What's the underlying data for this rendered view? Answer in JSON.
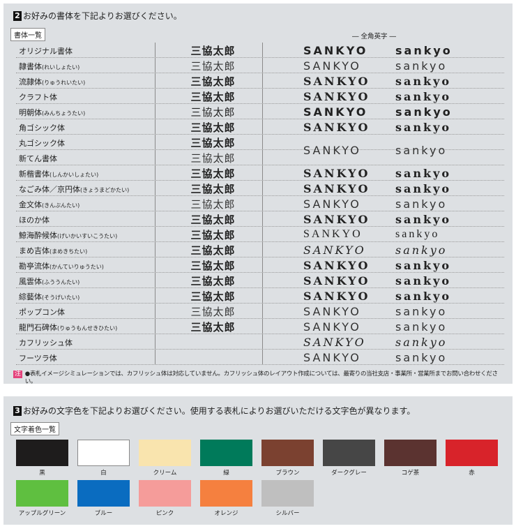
{
  "section2": {
    "number": "2",
    "title": "お好みの書体を下記よりお選びください。",
    "tag": "書体一覧",
    "en_header": "― 全角英字 ―",
    "sample_jp": "三協太郎",
    "sample_upper": "SANKYO",
    "sample_lower": "sankyo",
    "fonts": [
      {
        "name": "オリジナル書体",
        "reading": "",
        "jp": true,
        "style": "bold"
      },
      {
        "name": "隷書体",
        "reading": "(れいしょたい)",
        "jp": true,
        "style": "light"
      },
      {
        "name": "流隷体",
        "reading": "(りゅうれいたい)",
        "jp": true,
        "style": "bold"
      },
      {
        "name": "クラフト体",
        "reading": "",
        "jp": true,
        "style": "bold"
      },
      {
        "name": "明朝体",
        "reading": "(みんちょうたい)",
        "jp": true,
        "style": "serif"
      },
      {
        "name": "角ゴシック体",
        "reading": "",
        "jp": true,
        "style": "sans"
      },
      {
        "name": "丸ゴシック体",
        "reading": "",
        "jp": true,
        "style": "sans"
      },
      {
        "name": "新てん書体",
        "reading": "",
        "jp": true,
        "style": "light"
      },
      {
        "name": "新楷書体",
        "reading": "(しんかいしょたい)",
        "jp": true,
        "style": "bold"
      },
      {
        "name": "なごみ体／京円体",
        "reading": "(きょうまどかたい)",
        "jp": true,
        "style": "bold"
      },
      {
        "name": "金文体",
        "reading": "(きんぶんたい)",
        "jp": true,
        "style": "light"
      },
      {
        "name": "ほのか体",
        "reading": "",
        "jp": true,
        "style": "bold"
      },
      {
        "name": "鯨海酔候体",
        "reading": "(げいかいすいこうたい)",
        "jp": true,
        "style": "bold"
      },
      {
        "name": "まめ吉体",
        "reading": "(まめきちたい)",
        "jp": true,
        "style": "bold"
      },
      {
        "name": "勘亭流体",
        "reading": "(かんていりゅうたい)",
        "jp": true,
        "style": "bold"
      },
      {
        "name": "風雲体",
        "reading": "(ふううんたい)",
        "jp": true,
        "style": "bold"
      },
      {
        "name": "綜藝体",
        "reading": "(そうげいたい)",
        "jp": true,
        "style": "sans"
      },
      {
        "name": "ポップコン体",
        "reading": "",
        "jp": true,
        "style": "light"
      },
      {
        "name": "龍門石碑体",
        "reading": "(りゅうもんせきひたい)",
        "jp": true,
        "style": "bold"
      },
      {
        "name": "カフリッシュ体",
        "reading": "",
        "jp": false,
        "style": "italic"
      },
      {
        "name": "フーツラ体",
        "reading": "",
        "jp": false,
        "style": "light"
      }
    ],
    "en_rows": [
      {
        "span": 1,
        "style": "sans"
      },
      {
        "span": 1,
        "style": "light"
      },
      {
        "span": 1,
        "style": "bold"
      },
      {
        "span": 1,
        "style": "bold"
      },
      {
        "span": 1,
        "style": "sans"
      },
      {
        "span": 1,
        "style": "bold"
      },
      {
        "span": 2,
        "style": "light"
      },
      {
        "span": 1,
        "style": "bold"
      },
      {
        "span": 1,
        "style": "bold"
      },
      {
        "span": 1,
        "style": "light"
      },
      {
        "span": 1,
        "style": "bold"
      },
      {
        "span": 1,
        "style": "serif"
      },
      {
        "span": 1,
        "style": "italic"
      },
      {
        "span": 1,
        "style": "bold"
      },
      {
        "span": 1,
        "style": "bold"
      },
      {
        "span": 1,
        "style": "bold"
      },
      {
        "span": 1,
        "style": "light"
      },
      {
        "span": 1,
        "style": "light"
      },
      {
        "span": 1,
        "style": "italic"
      },
      {
        "span": 1,
        "style": "light"
      }
    ],
    "note_badge": "注",
    "note": "●表札イメージシミュレーションでは、カフリッシュ体は対応していません。カフリッシュ体のレイアウト作成については、最寄りの当社支店・事業所・営業所までお問い合わせください。"
  },
  "section3": {
    "number": "3",
    "title": "お好みの文字色を下記よりお選びください。使用する表札によりお選びいただける文字色が異なります。",
    "tag": "文字着色一覧",
    "colors": [
      {
        "name": "黒",
        "hex": "#1e1c1c"
      },
      {
        "name": "白",
        "hex": "#ffffff"
      },
      {
        "name": "クリーム",
        "hex": "#f9e4ae"
      },
      {
        "name": "緑",
        "hex": "#007a5a"
      },
      {
        "name": "ブラウン",
        "hex": "#7b4130"
      },
      {
        "name": "ダークグレー",
        "hex": "#464646"
      },
      {
        "name": "コゲ茶",
        "hex": "#5b3330"
      },
      {
        "name": "赤",
        "hex": "#d8232a"
      },
      {
        "name": "アップルグリーン",
        "hex": "#5fbf40"
      },
      {
        "name": "ブルー",
        "hex": "#0a6cc0"
      },
      {
        "name": "ピンク",
        "hex": "#f59c9a"
      },
      {
        "name": "オレンジ",
        "hex": "#f5803f"
      },
      {
        "name": "シルバー",
        "hex": "#bfbfbf"
      }
    ]
  }
}
